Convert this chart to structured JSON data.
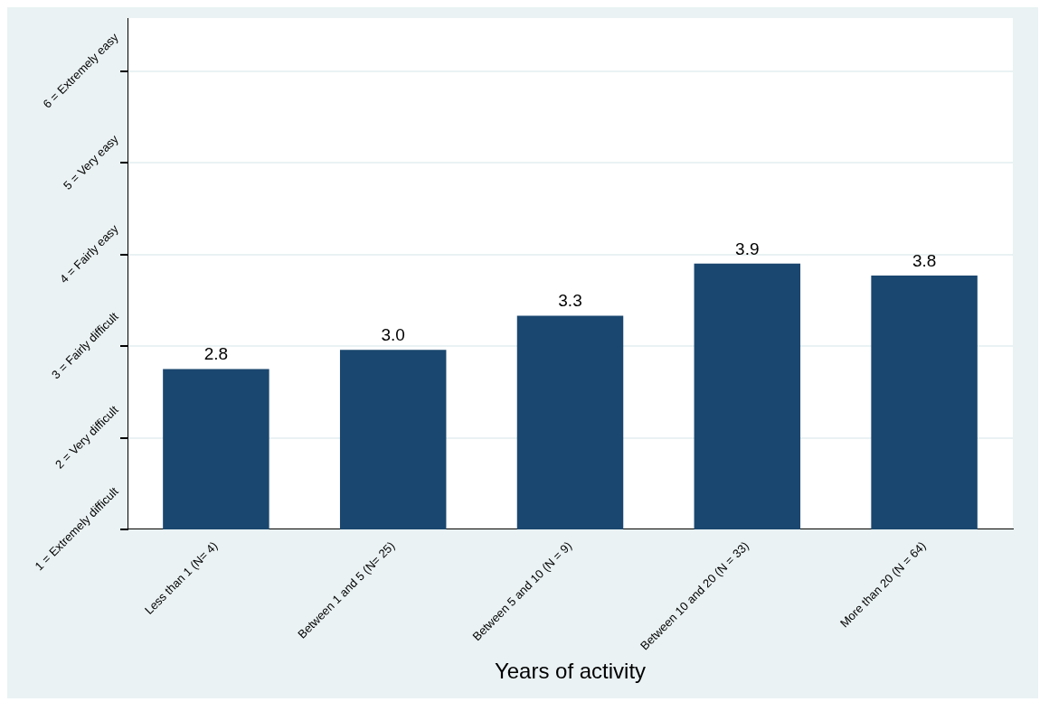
{
  "chart_data": {
    "type": "bar",
    "xlabel": "Years of activity",
    "categories": [
      "Less than 1 (N= 4)",
      "Between 1 and 5 (N= 25)",
      "Between 5 and 10 (N = 9)",
      "Between 10 and 20 (N = 33)",
      "More than 20 (N = 64)"
    ],
    "values": [
      2.75,
      2.96,
      3.33,
      3.9,
      3.77
    ],
    "value_labels": [
      "2.8",
      "3.0",
      "3.3",
      "3.9",
      "3.8"
    ],
    "color": "#1a476f",
    "ylim": [
      1,
      6.58
    ],
    "yticks": [
      {
        "value": 1,
        "label": "1 = Extremely difficult"
      },
      {
        "value": 2,
        "label": "2 = Very difficult"
      },
      {
        "value": 3,
        "label": "3 = Fairly difficult"
      },
      {
        "value": 4,
        "label": "4 = Fairly easy"
      },
      {
        "value": 5,
        "label": "5 = Very easy"
      },
      {
        "value": 6,
        "label": "6 = Extremely easy"
      }
    ],
    "grid": "y",
    "legend": false
  }
}
